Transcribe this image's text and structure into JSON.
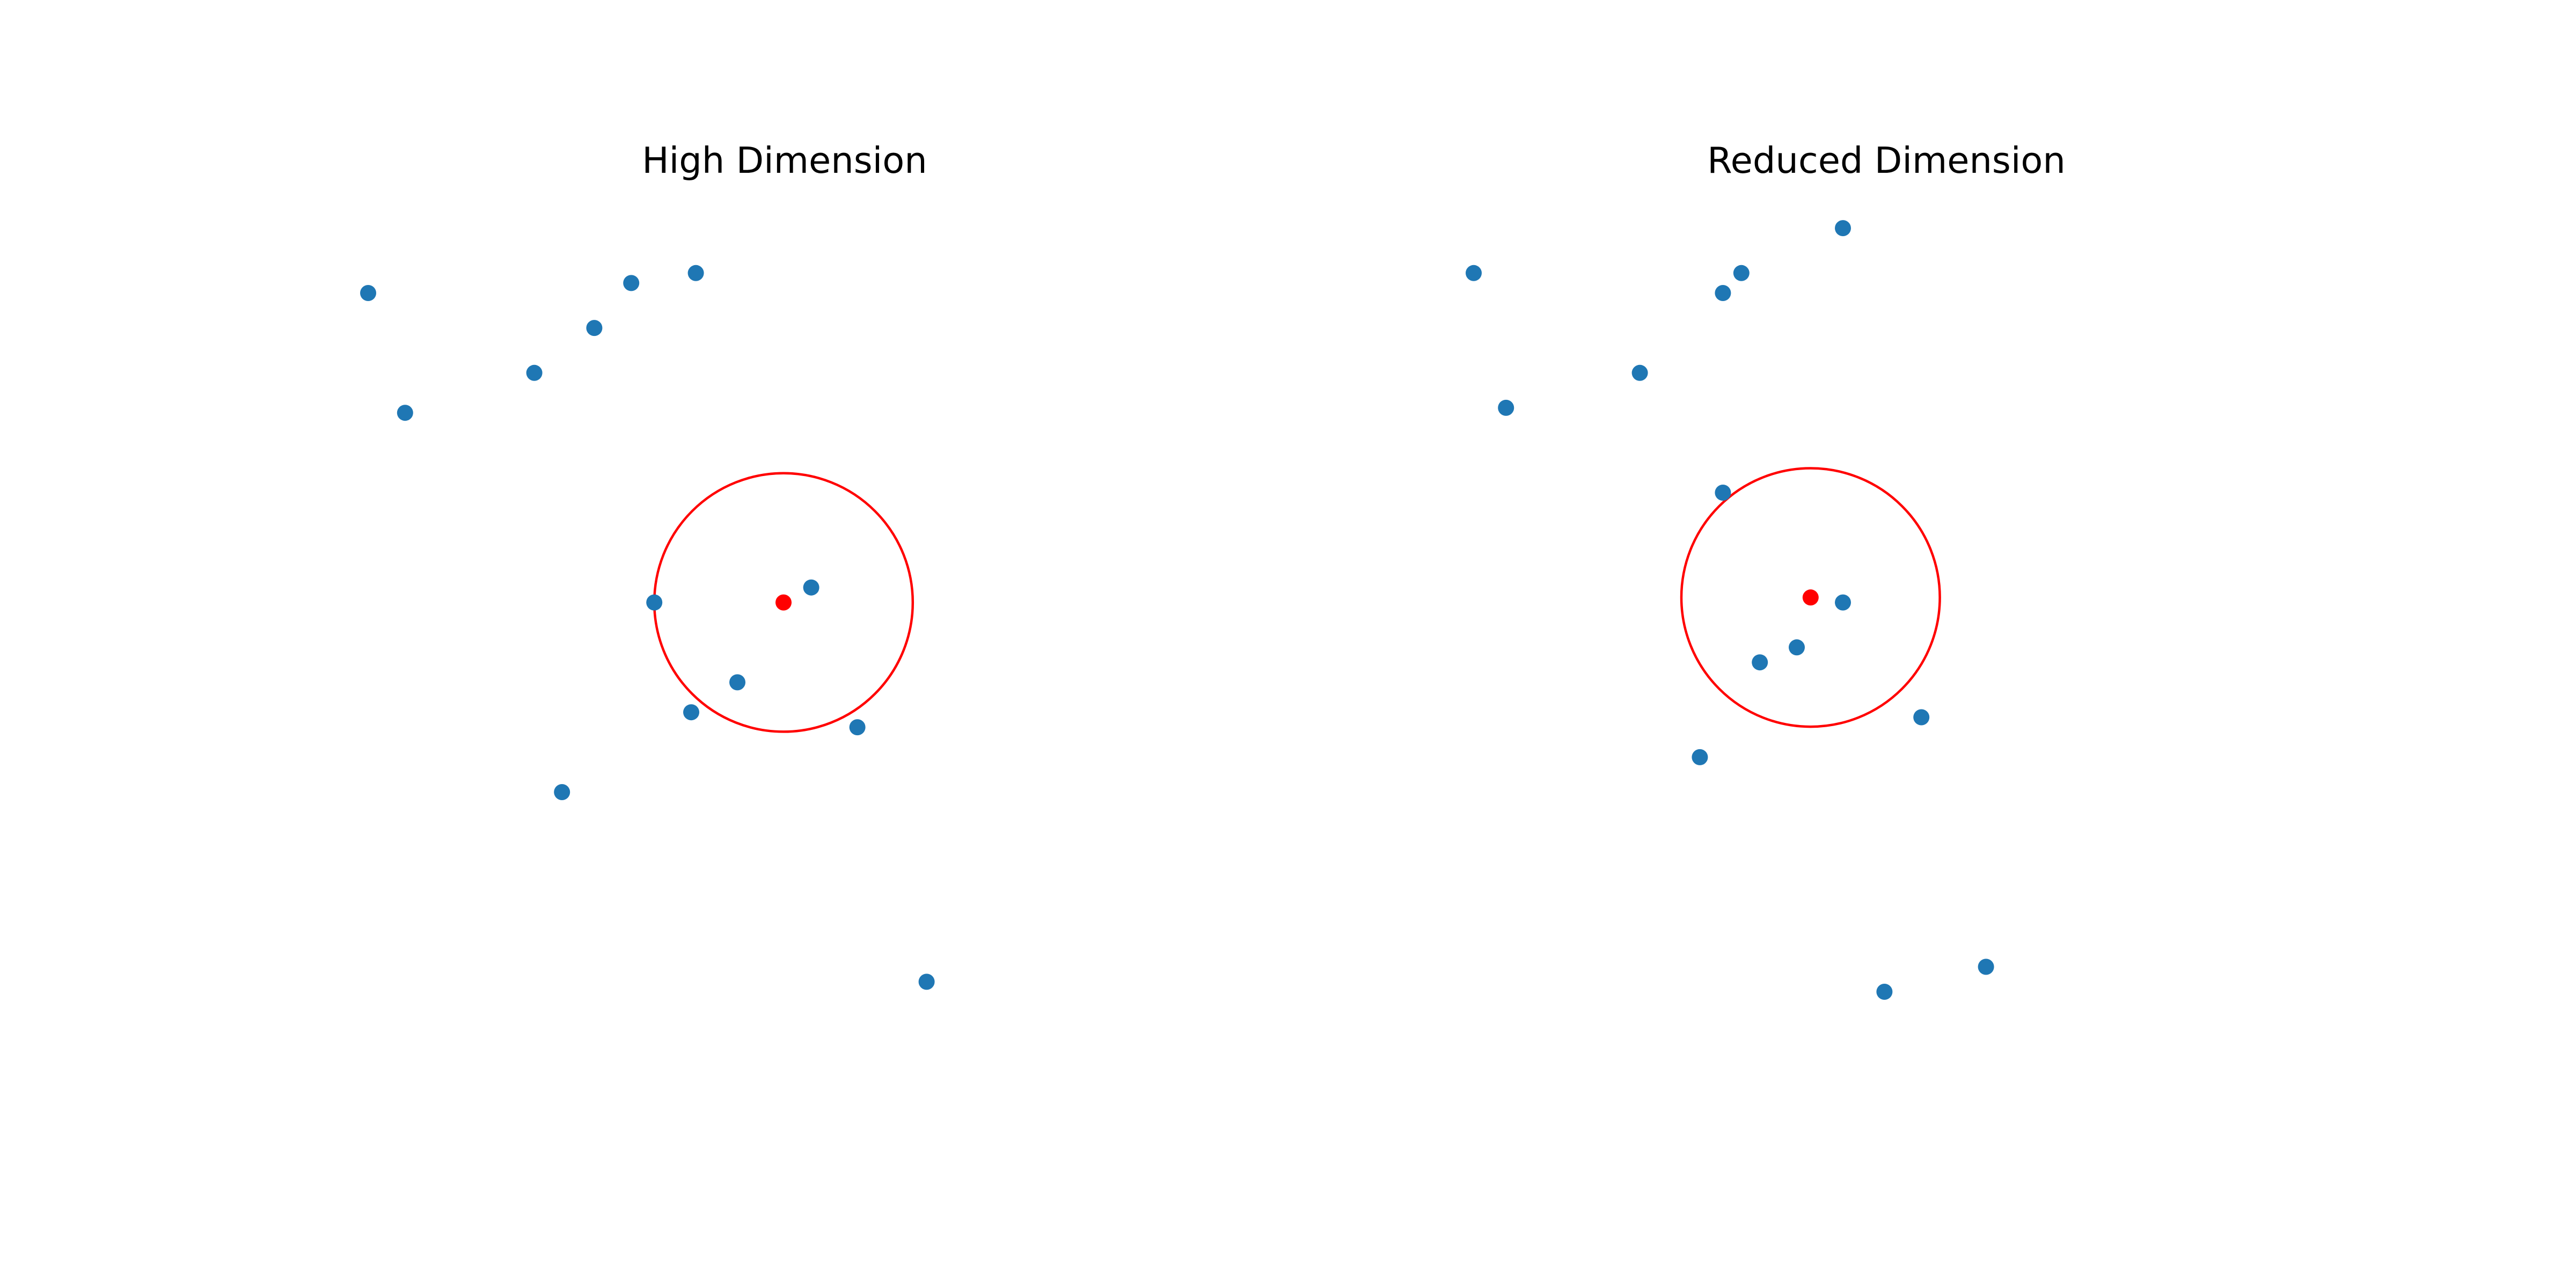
{
  "chart_data": [
    {
      "type": "scatter",
      "title": "High Dimension",
      "axes": "off",
      "grid": false,
      "xlim": [
        0,
        10
      ],
      "ylim": [
        0,
        10
      ],
      "colors": {
        "points": "#1f77b4",
        "query": "#ff0000",
        "radius_circle": "#ff0000"
      },
      "points": [
        {
          "x": 0.5,
          "y": 9.0
        },
        {
          "x": 0.9,
          "y": 7.8
        },
        {
          "x": 2.3,
          "y": 8.2
        },
        {
          "x": 2.95,
          "y": 8.65
        },
        {
          "x": 3.35,
          "y": 9.1
        },
        {
          "x": 4.05,
          "y": 9.2
        },
        {
          "x": 3.6,
          "y": 5.9
        },
        {
          "x": 5.3,
          "y": 6.05
        },
        {
          "x": 4.0,
          "y": 4.8
        },
        {
          "x": 4.5,
          "y": 5.1
        },
        {
          "x": 5.8,
          "y": 4.65
        },
        {
          "x": 2.6,
          "y": 4.0
        },
        {
          "x": 6.55,
          "y": 2.1
        }
      ],
      "query": {
        "x": 5.0,
        "y": 5.9
      },
      "radius": 1.4
    },
    {
      "type": "scatter",
      "title": "Reduced Dimension",
      "axes": "off",
      "grid": false,
      "xlim": [
        0,
        10
      ],
      "ylim": [
        0,
        10
      ],
      "colors": {
        "points": "#1f77b4",
        "query": "#ff0000",
        "radius_circle": "#ff0000"
      },
      "points": [
        {
          "x": 0.5,
          "y": 9.2
        },
        {
          "x": 0.85,
          "y": 7.85
        },
        {
          "x": 2.3,
          "y": 8.2
        },
        {
          "x": 3.2,
          "y": 9.0
        },
        {
          "x": 3.4,
          "y": 9.2
        },
        {
          "x": 4.5,
          "y": 9.65
        },
        {
          "x": 3.2,
          "y": 7.0
        },
        {
          "x": 4.5,
          "y": 5.9
        },
        {
          "x": 3.6,
          "y": 5.3
        },
        {
          "x": 4.0,
          "y": 5.45
        },
        {
          "x": 5.35,
          "y": 4.75
        },
        {
          "x": 2.95,
          "y": 4.35
        },
        {
          "x": 4.95,
          "y": 2.0
        },
        {
          "x": 6.05,
          "y": 2.25
        }
      ],
      "query": {
        "x": 4.15,
        "y": 5.95
      },
      "radius": 1.4
    }
  ]
}
